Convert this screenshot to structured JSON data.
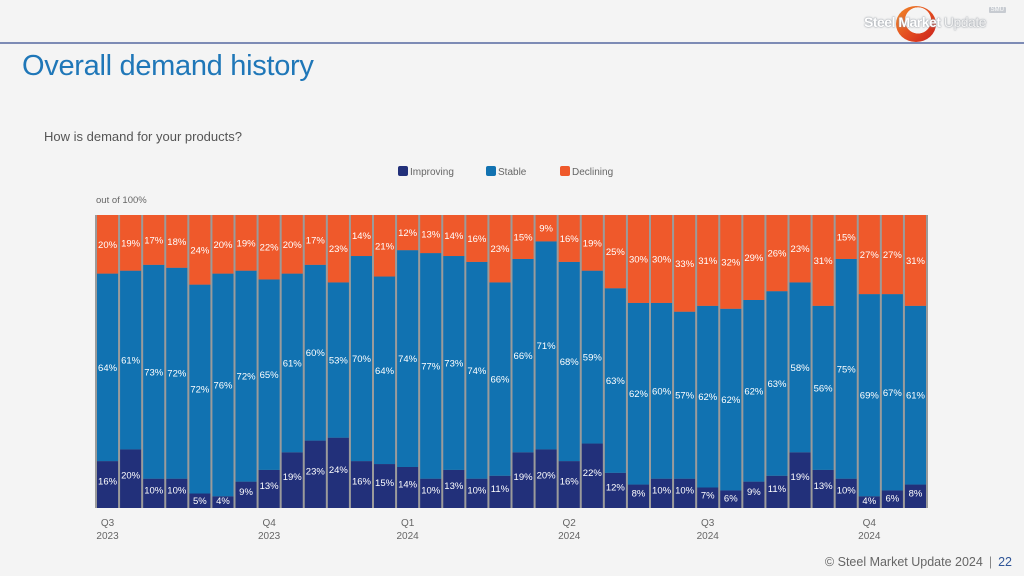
{
  "header": {
    "logo_bold": "Steel Market",
    "logo_light": "Update",
    "logo_badge": "SMU"
  },
  "slide": {
    "title": "Overall demand history",
    "question": "How is demand for your products?"
  },
  "footer": {
    "copyright": "© Steel Market Update 2024",
    "separator": "|",
    "page_number": "22"
  },
  "colors": {
    "improving": "#22307a",
    "stable": "#1172b1",
    "declining": "#ef592b",
    "gap": "#9b9b9b",
    "label": "#ffffff"
  },
  "chart_data": {
    "type": "bar",
    "stacked": true,
    "percent_stacked": true,
    "title": "How is demand for your products?",
    "ylabel": "out of 100%",
    "xlabel": "",
    "ylim": [
      0,
      100
    ],
    "grid": false,
    "legend_position": "top-center",
    "legend": [
      "Improving",
      "Stable",
      "Declining"
    ],
    "x_tick_labels": [
      {
        "index": 0,
        "line1": "Q3",
        "line2": "2023"
      },
      {
        "index": 7,
        "line1": "Q4",
        "line2": "2023"
      },
      {
        "index": 13,
        "line1": "Q1",
        "line2": "2024"
      },
      {
        "index": 20,
        "line1": "Q2",
        "line2": "2024"
      },
      {
        "index": 26,
        "line1": "Q3",
        "line2": "2024"
      },
      {
        "index": 33,
        "line1": "Q4",
        "line2": "2024"
      }
    ],
    "series": [
      {
        "name": "Improving",
        "values": [
          16,
          20,
          10,
          10,
          5,
          4,
          9,
          13,
          19,
          23,
          24,
          16,
          15,
          14,
          10,
          13,
          10,
          11,
          19,
          20,
          16,
          22,
          12,
          8,
          10,
          10,
          7,
          6,
          9,
          11,
          19,
          13,
          10,
          4,
          6,
          8
        ]
      },
      {
        "name": "Stable",
        "values": [
          64,
          61,
          73,
          72,
          72,
          76,
          72,
          65,
          61,
          60,
          53,
          70,
          64,
          74,
          77,
          73,
          74,
          66,
          66,
          71,
          68,
          59,
          63,
          62,
          60,
          57,
          62,
          62,
          62,
          63,
          58,
          56,
          75,
          69,
          67,
          61
        ]
      },
      {
        "name": "Declining",
        "values": [
          20,
          19,
          17,
          18,
          24,
          20,
          19,
          22,
          20,
          17,
          23,
          14,
          21,
          12,
          13,
          14,
          16,
          23,
          15,
          9,
          16,
          19,
          25,
          30,
          30,
          33,
          31,
          32,
          29,
          26,
          23,
          31,
          15,
          27,
          27,
          31
        ]
      }
    ]
  }
}
